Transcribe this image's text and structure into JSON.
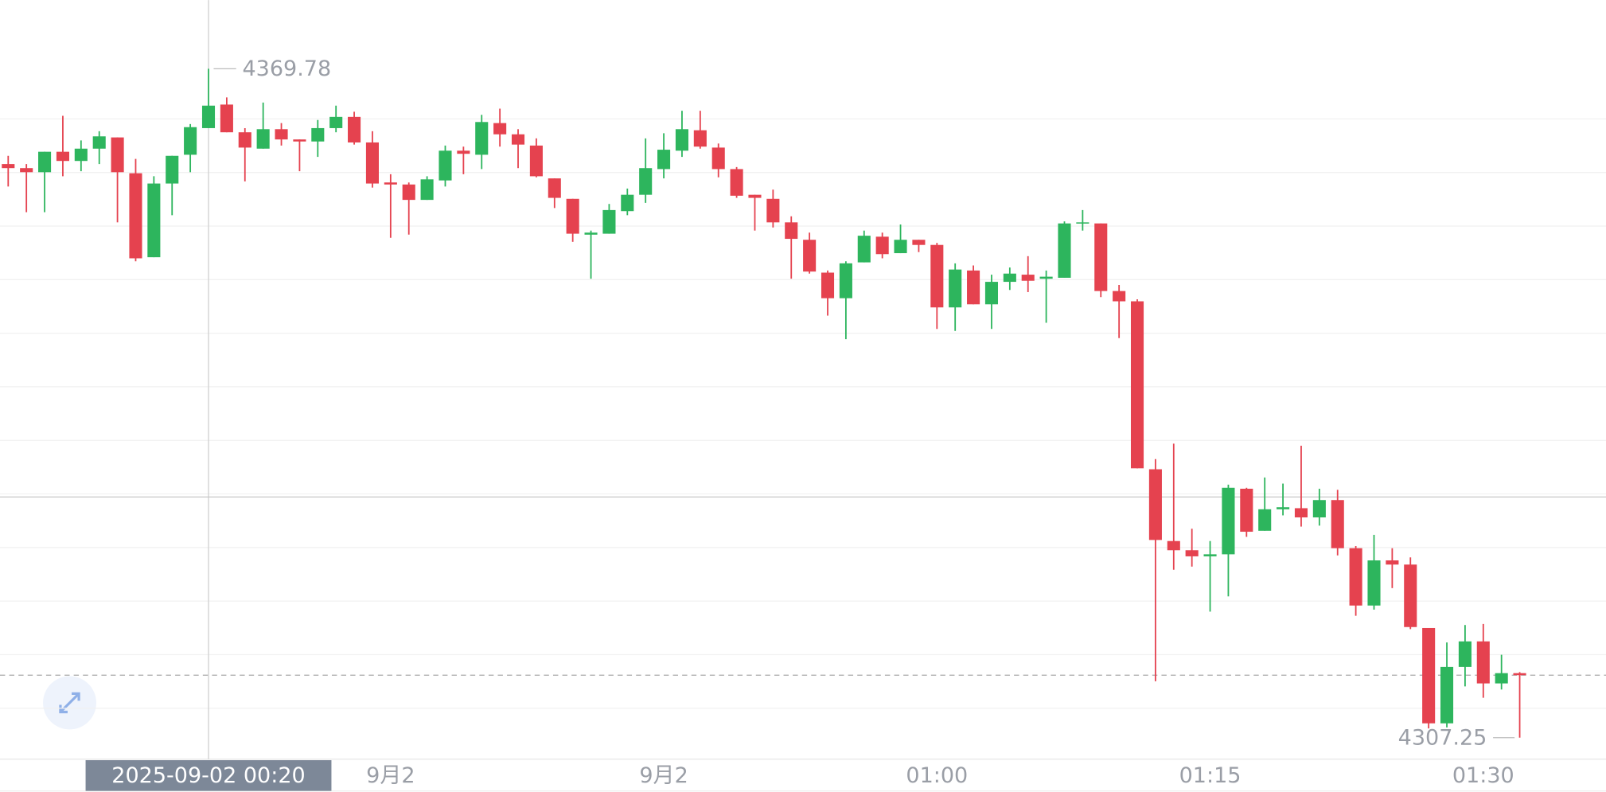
{
  "chart_data": {
    "type": "candlestick",
    "categories": [
      null,
      null,
      null,
      null,
      null,
      null,
      null,
      null,
      null,
      null,
      null,
      "2025-09-02 00:20",
      null,
      null,
      null,
      null,
      null,
      null,
      null,
      null,
      null,
      "9月2",
      null,
      null,
      null,
      null,
      null,
      null,
      null,
      null,
      null,
      null,
      null,
      null,
      null,
      null,
      "9月2",
      null,
      null,
      null,
      null,
      null,
      null,
      null,
      null,
      null,
      null,
      null,
      null,
      null,
      null,
      "01:00",
      null,
      null,
      null,
      null,
      null,
      null,
      null,
      null,
      null,
      null,
      null,
      null,
      null,
      null,
      "01:15",
      null,
      null,
      null,
      null,
      null,
      null,
      null,
      null,
      null,
      null,
      null,
      null,
      null,
      null,
      "01:30",
      null,
      null
    ],
    "open": [
      4360.87,
      4360.49,
      4360.11,
      4362.02,
      4361.16,
      4362.31,
      4363.36,
      4360.01,
      4352.16,
      4359.05,
      4361.74,
      4364.23,
      4366.43,
      4363.84,
      4362.31,
      4364.13,
      4363.17,
      4362.98,
      4364.23,
      4365.28,
      4362.89,
      4359.15,
      4358.96,
      4357.52,
      4359.34,
      4362.12,
      4361.74,
      4364.7,
      4363.65,
      4362.6,
      4359.53,
      4357.62,
      4354.27,
      4354.36,
      4356.47,
      4358.0,
      4360.4,
      4362.12,
      4364.03,
      4362.41,
      4360.4,
      4358.0,
      4357.62,
      4355.42,
      4353.79,
      4350.72,
      4348.33,
      4351.68,
      4354.08,
      4352.54,
      4353.79,
      4353.31,
      4347.47,
      4350.92,
      4347.76,
      4349.86,
      4350.53,
      4350.15,
      4350.24,
      4355.32,
      4355.32,
      4349.0,
      4348.04,
      4332.34,
      4325.63,
      4324.77,
      4324.2,
      4324.39,
      4330.52,
      4326.59,
      4328.6,
      4328.7,
      4327.84,
      4329.46,
      4324.96,
      4319.6,
      4323.82,
      4323.43,
      4317.5,
      4308.59,
      4313.86,
      4316.25,
      4312.32,
      4313.28
    ],
    "high": [
      4361.64,
      4360.87,
      4362.02,
      4365.38,
      4363.08,
      4363.94,
      4363.36,
      4361.35,
      4359.73,
      4361.64,
      4364.61,
      4369.78,
      4367.1,
      4364.23,
      4366.62,
      4364.7,
      4363.17,
      4364.99,
      4366.33,
      4365.76,
      4363.94,
      4359.92,
      4359.15,
      4359.73,
      4362.6,
      4362.5,
      4365.47,
      4366.05,
      4364.13,
      4363.27,
      4359.53,
      4357.62,
      4354.65,
      4357.14,
      4358.58,
      4363.27,
      4363.75,
      4365.85,
      4365.85,
      4362.79,
      4360.59,
      4358.0,
      4358.48,
      4355.99,
      4354.46,
      4350.92,
      4351.78,
      4354.65,
      4354.46,
      4355.22,
      4353.79,
      4353.5,
      4351.59,
      4351.39,
      4350.53,
      4351.2,
      4352.26,
      4350.92,
      4355.51,
      4356.57,
      4355.32,
      4349.57,
      4348.23,
      4333.29,
      4334.73,
      4326.78,
      4325.63,
      4330.9,
      4330.61,
      4331.57,
      4331.0,
      4334.54,
      4330.52,
      4330.42,
      4325.16,
      4326.21,
      4324.96,
      4324.1,
      4317.5,
      4316.15,
      4317.78,
      4317.88,
      4315.0,
      4313.38
    ],
    "low": [
      4358.77,
      4356.37,
      4356.37,
      4359.73,
      4360.2,
      4360.87,
      4355.42,
      4351.78,
      4352.16,
      4356.09,
      4360.11,
      4364.23,
      4363.84,
      4359.25,
      4362.31,
      4362.6,
      4360.2,
      4361.54,
      4363.84,
      4362.69,
      4358.67,
      4353.98,
      4354.27,
      4357.52,
      4358.77,
      4359.92,
      4360.4,
      4362.5,
      4360.49,
      4359.63,
      4356.76,
      4353.6,
      4350.15,
      4354.36,
      4356.09,
      4357.24,
      4359.53,
      4361.54,
      4362.31,
      4359.63,
      4357.71,
      4354.65,
      4354.94,
      4350.15,
      4350.63,
      4346.7,
      4344.5,
      4351.68,
      4352.06,
      4352.54,
      4352.64,
      4345.46,
      4345.27,
      4347.76,
      4345.46,
      4349.1,
      4348.9,
      4346.03,
      4350.24,
      4354.65,
      4348.43,
      4344.6,
      4332.43,
      4312.52,
      4322.95,
      4323.24,
      4319.03,
      4320.46,
      4326.02,
      4326.59,
      4328.03,
      4326.98,
      4327.07,
      4324.29,
      4318.64,
      4319.22,
      4321.23,
      4317.4,
      4308.11,
      4308.21,
      4312.04,
      4310.98,
      4311.75,
      4307.25
    ],
    "close": [
      4360.49,
      4360.11,
      4362.02,
      4361.16,
      4362.31,
      4363.46,
      4360.11,
      4352.06,
      4359.05,
      4361.64,
      4364.32,
      4366.33,
      4363.84,
      4362.41,
      4364.13,
      4363.17,
      4362.98,
      4364.23,
      4365.28,
      4362.89,
      4359.05,
      4358.96,
      4357.52,
      4359.44,
      4362.12,
      4361.83,
      4364.8,
      4363.65,
      4362.69,
      4359.73,
      4357.71,
      4354.36,
      4354.46,
      4356.57,
      4358.0,
      4360.49,
      4362.21,
      4364.13,
      4362.5,
      4360.4,
      4357.91,
      4357.71,
      4355.42,
      4353.88,
      4350.82,
      4348.33,
      4351.59,
      4354.17,
      4352.45,
      4353.79,
      4353.31,
      4347.47,
      4351.01,
      4347.76,
      4349.86,
      4350.63,
      4349.96,
      4350.34,
      4355.32,
      4355.42,
      4349.0,
      4348.04,
      4332.43,
      4325.73,
      4324.77,
      4324.2,
      4324.39,
      4330.61,
      4326.5,
      4328.6,
      4328.79,
      4327.84,
      4329.46,
      4324.96,
      4319.6,
      4323.82,
      4323.43,
      4317.59,
      4308.59,
      4313.86,
      4316.25,
      4312.32,
      4313.28,
      4313.09
    ],
    "up_color": "#2db55d",
    "down_color": "#e5424f",
    "ylim": [
      4305.24,
      4376.2
    ],
    "crosshair": {
      "index": 11,
      "y": 4329.75
    }
  }
}
